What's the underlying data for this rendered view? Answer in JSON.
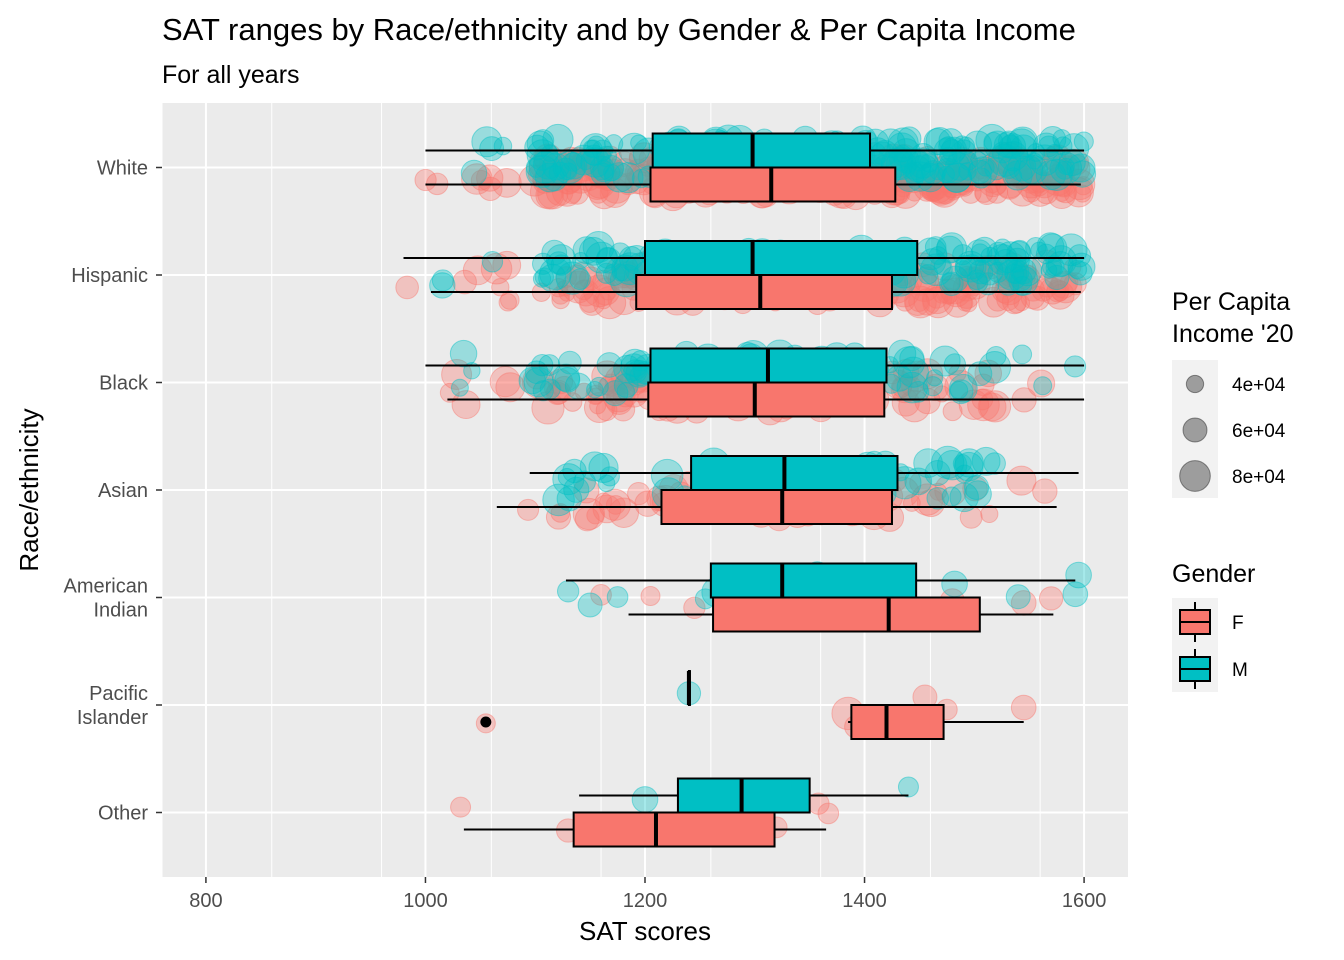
{
  "chart_data": {
    "type": "boxplot",
    "title": "SAT ranges by Race/ethnicity and by Gender & Per Capita Income",
    "subtitle": "For all years",
    "xlabel": "SAT scores",
    "ylabel": "Race/ethnicity",
    "xlim": [
      760,
      1640
    ],
    "x_ticks": [
      800,
      1000,
      1200,
      1400,
      1600
    ],
    "orientation": "horizontal",
    "grid": true,
    "categories": [
      "White",
      "Hispanic",
      "Black",
      "Asian",
      "American\nIndian",
      "Pacific\nIslander",
      "Other"
    ],
    "colors": {
      "F": "#F8766D",
      "M": "#00BFC4"
    },
    "series": [
      {
        "name": "F",
        "boxes": [
          {
            "category": "White",
            "whisker_low": 1000,
            "q1": 1205,
            "median": 1315,
            "q3": 1428,
            "whisker_high": 1597
          },
          {
            "category": "Hispanic",
            "whisker_low": 1005,
            "q1": 1192,
            "median": 1305,
            "q3": 1425,
            "whisker_high": 1597
          },
          {
            "category": "Black",
            "whisker_low": 1020,
            "q1": 1203,
            "median": 1300,
            "q3": 1418,
            "whisker_high": 1600
          },
          {
            "category": "Asian",
            "whisker_low": 1065,
            "q1": 1215,
            "median": 1325,
            "q3": 1425,
            "whisker_high": 1575
          },
          {
            "category": "American\nIndian",
            "whisker_low": 1185,
            "q1": 1262,
            "median": 1422,
            "q3": 1505,
            "whisker_high": 1572
          },
          {
            "category": "Pacific\nIslander",
            "whisker_low": 1385,
            "q1": 1388,
            "median": 1420,
            "q3": 1472,
            "whisker_high": 1545,
            "outliers": [
              1055
            ]
          },
          {
            "category": "Other",
            "whisker_low": 1035,
            "q1": 1135,
            "median": 1210,
            "q3": 1318,
            "whisker_high": 1365
          }
        ]
      },
      {
        "name": "M",
        "boxes": [
          {
            "category": "White",
            "whisker_low": 1000,
            "q1": 1207,
            "median": 1298,
            "q3": 1405,
            "whisker_high": 1600
          },
          {
            "category": "Hispanic",
            "whisker_low": 980,
            "q1": 1200,
            "median": 1298,
            "q3": 1448,
            "whisker_high": 1600
          },
          {
            "category": "Black",
            "whisker_low": 1000,
            "q1": 1205,
            "median": 1312,
            "q3": 1420,
            "whisker_high": 1600
          },
          {
            "category": "Asian",
            "whisker_low": 1095,
            "q1": 1242,
            "median": 1327,
            "q3": 1430,
            "whisker_high": 1595
          },
          {
            "category": "American\nIndian",
            "whisker_low": 1128,
            "q1": 1260,
            "median": 1325,
            "q3": 1447,
            "whisker_high": 1592
          },
          {
            "category": "Pacific\nIslander",
            "whisker_low": 1240,
            "q1": 1240,
            "median": 1240,
            "q3": 1240,
            "whisker_high": 1240
          },
          {
            "category": "Other",
            "whisker_low": 1140,
            "q1": 1230,
            "median": 1288,
            "q3": 1350,
            "whisker_high": 1440
          }
        ]
      }
    ],
    "scatter_points": [
      {
        "category": "American\nIndian",
        "gender": "F",
        "x": 1160,
        "income": 50000
      },
      {
        "category": "American\nIndian",
        "gender": "F",
        "x": 1205,
        "income": 45000
      },
      {
        "category": "American\nIndian",
        "gender": "F",
        "x": 1245,
        "income": 52000
      },
      {
        "category": "American\nIndian",
        "gender": "F",
        "x": 1435,
        "income": 55000
      },
      {
        "category": "American\nIndian",
        "gender": "F",
        "x": 1480,
        "income": 60000
      },
      {
        "category": "American\nIndian",
        "gender": "F",
        "x": 1545,
        "income": 62000
      },
      {
        "category": "American\nIndian",
        "gender": "F",
        "x": 1570,
        "income": 58000
      },
      {
        "category": "American\nIndian",
        "gender": "M",
        "x": 1130,
        "income": 52000
      },
      {
        "category": "American\nIndian",
        "gender": "M",
        "x": 1150,
        "income": 60000
      },
      {
        "category": "American\nIndian",
        "gender": "M",
        "x": 1175,
        "income": 50000
      },
      {
        "category": "American\nIndian",
        "gender": "M",
        "x": 1255,
        "income": 48000
      },
      {
        "category": "American\nIndian",
        "gender": "M",
        "x": 1265,
        "income": 75000
      },
      {
        "category": "American\nIndian",
        "gender": "M",
        "x": 1298,
        "income": 45000
      },
      {
        "category": "American\nIndian",
        "gender": "M",
        "x": 1357,
        "income": 60000
      },
      {
        "category": "American\nIndian",
        "gender": "M",
        "x": 1380,
        "income": 55000
      },
      {
        "category": "American\nIndian",
        "gender": "M",
        "x": 1430,
        "income": 52000
      },
      {
        "category": "American\nIndian",
        "gender": "M",
        "x": 1482,
        "income": 65000
      },
      {
        "category": "American\nIndian",
        "gender": "M",
        "x": 1540,
        "income": 60000
      },
      {
        "category": "American\nIndian",
        "gender": "M",
        "x": 1592,
        "income": 62000
      },
      {
        "category": "American\nIndian",
        "gender": "M",
        "x": 1595,
        "income": 65000
      },
      {
        "category": "Pacific\nIslander",
        "gender": "F",
        "x": 1055,
        "income": 45000
      },
      {
        "category": "Pacific\nIslander",
        "gender": "F",
        "x": 1385,
        "income": 85000
      },
      {
        "category": "Pacific\nIslander",
        "gender": "F",
        "x": 1392,
        "income": 55000
      },
      {
        "category": "Pacific\nIslander",
        "gender": "F",
        "x": 1455,
        "income": 60000
      },
      {
        "category": "Pacific\nIslander",
        "gender": "F",
        "x": 1475,
        "income": 50000
      },
      {
        "category": "Pacific\nIslander",
        "gender": "F",
        "x": 1545,
        "income": 62000
      },
      {
        "category": "Pacific\nIslander",
        "gender": "M",
        "x": 1240,
        "income": 58000
      },
      {
        "category": "Other",
        "gender": "F",
        "x": 1032,
        "income": 48000
      },
      {
        "category": "Other",
        "gender": "F",
        "x": 1130,
        "income": 58000
      },
      {
        "category": "Other",
        "gender": "F",
        "x": 1155,
        "income": 52000
      },
      {
        "category": "Other",
        "gender": "F",
        "x": 1210,
        "income": 50000
      },
      {
        "category": "Other",
        "gender": "F",
        "x": 1280,
        "income": 55000
      },
      {
        "category": "Other",
        "gender": "F",
        "x": 1320,
        "income": 50000
      },
      {
        "category": "Other",
        "gender": "F",
        "x": 1358,
        "income": 52000
      },
      {
        "category": "Other",
        "gender": "F",
        "x": 1367,
        "income": 50000
      },
      {
        "category": "Other",
        "gender": "M",
        "x": 1200,
        "income": 65000
      },
      {
        "category": "Other",
        "gender": "M",
        "x": 1262,
        "income": 78000
      },
      {
        "category": "Other",
        "gender": "M",
        "x": 1440,
        "income": 48000
      }
    ]
  },
  "legend": {
    "size": {
      "title": "Per Capita\nIncome '20",
      "entries": [
        "4e+04",
        "6e+04",
        "8e+04"
      ]
    },
    "gender": {
      "title": "Gender",
      "entries": [
        "F",
        "M"
      ]
    }
  }
}
